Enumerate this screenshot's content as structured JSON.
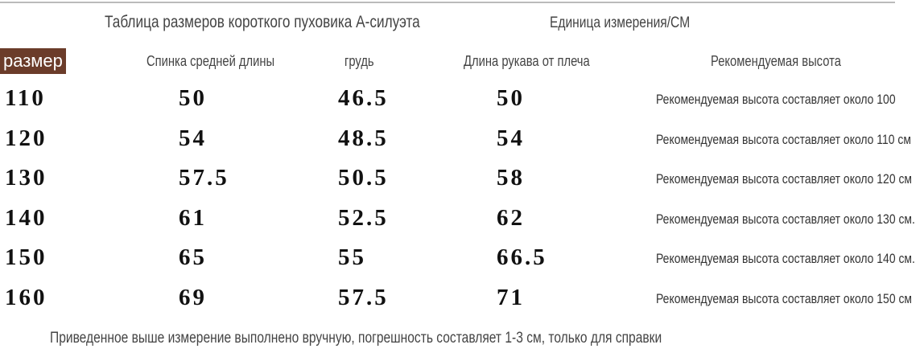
{
  "header": {
    "title": "Таблица размеров короткого пуховика А-силуэта",
    "unit": "Единица измерения/CM"
  },
  "table": {
    "columns": [
      "размер",
      "Спинка средней длины",
      "грудь",
      "Длина рукава от плеча",
      "Рекомендуемая высота"
    ],
    "rows": [
      [
        "110",
        "50",
        "46.5",
        "50",
        "Рекомендуемая высота составляет около 100"
      ],
      [
        "120",
        "54",
        "48.5",
        "54",
        "Рекомендуемая высота составляет около 110 см"
      ],
      [
        "130",
        "57.5",
        "50.5",
        "58",
        "Рекомендуемая высота составляет около 120 см"
      ],
      [
        "140",
        "61",
        "52.5",
        "62",
        "Рекомендуемая высота составляет около 130 см."
      ],
      [
        "150",
        "65",
        "55",
        "66.5",
        "Рекомендуемая высота составляет около 140 см."
      ],
      [
        "160",
        "69",
        "57.5",
        "71",
        "Рекомендуемая высота составляет около 150 см"
      ]
    ]
  },
  "footnote": "Приведенное выше измерение выполнено вручную, погрешность составляет 1-3 см, только для справки"
}
